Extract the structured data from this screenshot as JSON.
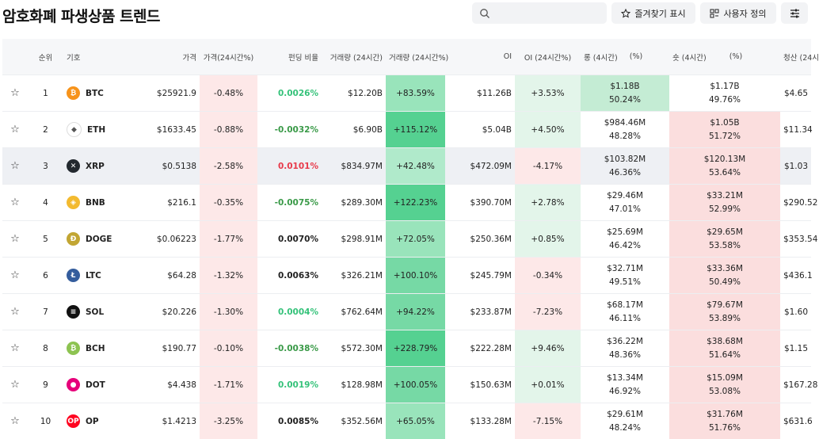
{
  "page_title": "암호화폐 파생상품 트렌드",
  "search": {
    "placeholder": ""
  },
  "toolbar": {
    "favorites_label": "즐겨찾기 표시",
    "custom_label": "사용자 정의"
  },
  "table": {
    "headers": {
      "rank": "순위",
      "symbol": "기호",
      "price": "가격",
      "price_change": "가격(24시간%)",
      "funding": "펀딩 비율",
      "volume": "거래량 (24시간)",
      "volume_change": "거래량 (24시간%)",
      "oi": "OI",
      "oi_change": "OI (24시간%)",
      "long": "롱 (4시간)",
      "long_pct": "(%)",
      "short": "숏 (4시간)",
      "short_pct": "(%)",
      "liq": "청산 (24시"
    },
    "rows": [
      {
        "star": "☆",
        "rank": "1",
        "symbol": "BTC",
        "price": "$25921.9",
        "price_change": "-0.48%",
        "funding": "0.0026%",
        "volume": "$12.20B",
        "volume_change": "+83.59%",
        "oi": "$11.26B",
        "oi_change": "+3.53%",
        "long_amt": "$1.18B",
        "long_pct": "50.24%",
        "short_amt": "$1.17B",
        "short_pct": "49.76%",
        "liq": "$4.65"
      },
      {
        "star": "☆",
        "rank": "2",
        "symbol": "ETH",
        "price": "$1633.45",
        "price_change": "-0.88%",
        "funding": "-0.0032%",
        "volume": "$6.90B",
        "volume_change": "+115.12%",
        "oi": "$5.04B",
        "oi_change": "+4.50%",
        "long_amt": "$984.46M",
        "long_pct": "48.28%",
        "short_amt": "$1.05B",
        "short_pct": "51.72%",
        "liq": "$11.34"
      },
      {
        "star": "☆",
        "rank": "3",
        "symbol": "XRP",
        "price": "$0.5138",
        "price_change": "-2.58%",
        "funding": "0.0101%",
        "volume": "$834.97M",
        "volume_change": "+42.48%",
        "oi": "$472.09M",
        "oi_change": "-4.17%",
        "long_amt": "$103.82M",
        "long_pct": "46.36%",
        "short_amt": "$120.13M",
        "short_pct": "53.64%",
        "liq": "$1.03"
      },
      {
        "star": "☆",
        "rank": "4",
        "symbol": "BNB",
        "price": "$216.1",
        "price_change": "-0.35%",
        "funding": "-0.0075%",
        "volume": "$289.30M",
        "volume_change": "+122.23%",
        "oi": "$390.70M",
        "oi_change": "+2.78%",
        "long_amt": "$29.46M",
        "long_pct": "47.01%",
        "short_amt": "$33.21M",
        "short_pct": "52.99%",
        "liq": "$290.52"
      },
      {
        "star": "☆",
        "rank": "5",
        "symbol": "DOGE",
        "price": "$0.06223",
        "price_change": "-1.77%",
        "funding": "0.0070%",
        "volume": "$298.91M",
        "volume_change": "+72.05%",
        "oi": "$250.36M",
        "oi_change": "+0.85%",
        "long_amt": "$25.69M",
        "long_pct": "46.42%",
        "short_amt": "$29.65M",
        "short_pct": "53.58%",
        "liq": "$353.54"
      },
      {
        "star": "☆",
        "rank": "6",
        "symbol": "LTC",
        "price": "$64.28",
        "price_change": "-1.32%",
        "funding": "0.0063%",
        "volume": "$326.21M",
        "volume_change": "+100.10%",
        "oi": "$245.79M",
        "oi_change": "-0.34%",
        "long_amt": "$32.71M",
        "long_pct": "49.51%",
        "short_amt": "$33.36M",
        "short_pct": "50.49%",
        "liq": "$436.1"
      },
      {
        "star": "☆",
        "rank": "7",
        "symbol": "SOL",
        "price": "$20.226",
        "price_change": "-1.30%",
        "funding": "0.0004%",
        "volume": "$762.64M",
        "volume_change": "+94.22%",
        "oi": "$233.87M",
        "oi_change": "-7.23%",
        "long_amt": "$68.17M",
        "long_pct": "46.11%",
        "short_amt": "$79.67M",
        "short_pct": "53.89%",
        "liq": "$1.60"
      },
      {
        "star": "☆",
        "rank": "8",
        "symbol": "BCH",
        "price": "$190.77",
        "price_change": "-0.10%",
        "funding": "-0.0038%",
        "volume": "$572.30M",
        "volume_change": "+228.79%",
        "oi": "$222.28M",
        "oi_change": "+9.46%",
        "long_amt": "$36.22M",
        "long_pct": "48.36%",
        "short_amt": "$38.68M",
        "short_pct": "51.64%",
        "liq": "$1.15"
      },
      {
        "star": "☆",
        "rank": "9",
        "symbol": "DOT",
        "price": "$4.438",
        "price_change": "-1.71%",
        "funding": "0.0019%",
        "volume": "$128.98M",
        "volume_change": "+100.05%",
        "oi": "$150.63M",
        "oi_change": "+0.01%",
        "long_amt": "$13.34M",
        "long_pct": "46.92%",
        "short_amt": "$15.09M",
        "short_pct": "53.08%",
        "liq": "$167.28"
      },
      {
        "star": "☆",
        "rank": "10",
        "symbol": "OP",
        "price": "$1.4213",
        "price_change": "-3.25%",
        "funding": "0.0085%",
        "volume": "$352.56M",
        "volume_change": "+65.05%",
        "oi": "$133.28M",
        "oi_change": "-7.15%",
        "long_amt": "$29.61M",
        "long_pct": "48.24%",
        "short_amt": "$31.76M",
        "short_pct": "51.76%",
        "liq": "$631.6"
      }
    ]
  },
  "coin_colors": {
    "BTC": "#f7931a",
    "ETH": "#ffffff",
    "XRP": "#23292f",
    "BNB": "#f3ba2f",
    "DOGE": "#c2a633",
    "LTC": "#345d9d",
    "SOL": "#111111",
    "BCH": "#8dc351",
    "DOT": "#e6007a",
    "OP": "#ff0420"
  }
}
